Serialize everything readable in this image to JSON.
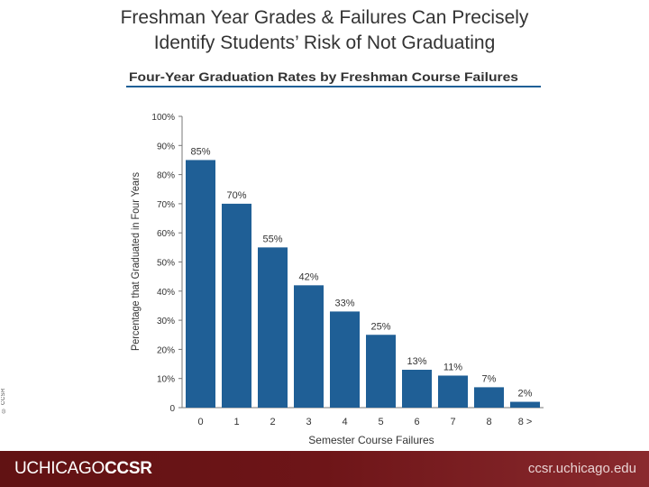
{
  "slide": {
    "title_line1": "Freshman Year Grades & Failures Can Precisely",
    "title_line2": "Identify Students’ Risk of Not Graduating",
    "copyright": "© CCSR"
  },
  "footer": {
    "brand_light": "UCHICAGO",
    "brand_bold": "CCSR",
    "site": "ccsr.uchicago.edu"
  },
  "chart_data": {
    "type": "bar",
    "title": "Four-Year Graduation Rates by Freshman Course Failures",
    "xlabel": "Semester Course Failures",
    "ylabel": "Percentage that Graduated in Four Years",
    "categories": [
      "0",
      "1",
      "2",
      "3",
      "4",
      "5",
      "6",
      "7",
      "8",
      "8 >"
    ],
    "values": [
      85,
      70,
      55,
      42,
      33,
      25,
      13,
      11,
      7,
      2
    ],
    "data_labels": [
      "85%",
      "70%",
      "55%",
      "42%",
      "33%",
      "25%",
      "13%",
      "11%",
      "7%",
      "2%"
    ],
    "ylim": [
      0,
      100
    ],
    "yticks": [
      0,
      10,
      20,
      30,
      40,
      50,
      60,
      70,
      80,
      90,
      100
    ],
    "ytick_labels": [
      "0",
      "10%",
      "20%",
      "30%",
      "40%",
      "50%",
      "60%",
      "70%",
      "80%",
      "90%",
      "100%"
    ],
    "grid": false,
    "legend": "none",
    "bar_color": "#1f5f96",
    "title_rule_color": "#1f5f96"
  }
}
